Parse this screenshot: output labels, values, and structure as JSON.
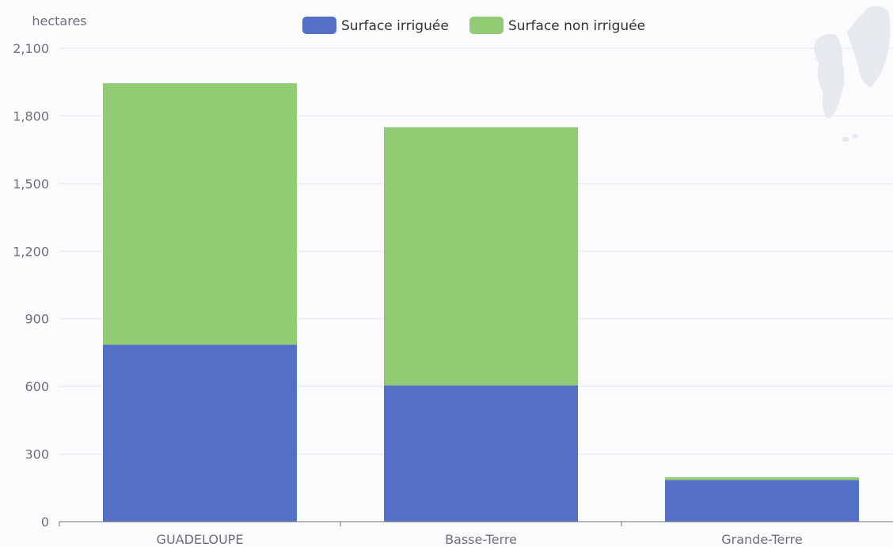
{
  "chart_data": {
    "type": "bar",
    "stacked": true,
    "title": "",
    "xlabel": "",
    "ylabel": "hectares",
    "ylim": [
      0,
      2100
    ],
    "yticks": [
      0,
      300,
      600,
      900,
      1200,
      1500,
      1800,
      2100
    ],
    "ytick_labels": [
      "0",
      "300",
      "600",
      "900",
      "1,200",
      "1,500",
      "1,800",
      "2,100"
    ],
    "categories": [
      "GUADELOUPE",
      "Basse-Terre",
      "Grande-Terre"
    ],
    "series": [
      {
        "name": "Surface irriguée",
        "color": "#5470c6",
        "values": [
          785,
          605,
          185
        ]
      },
      {
        "name": "Surface non irriguée",
        "color": "#91cc75",
        "values": [
          1160,
          1145,
          12
        ]
      }
    ],
    "legend_position": "top-center",
    "grid": true
  },
  "decoration": {
    "background_map": "guadeloupe-map-silhouette"
  }
}
